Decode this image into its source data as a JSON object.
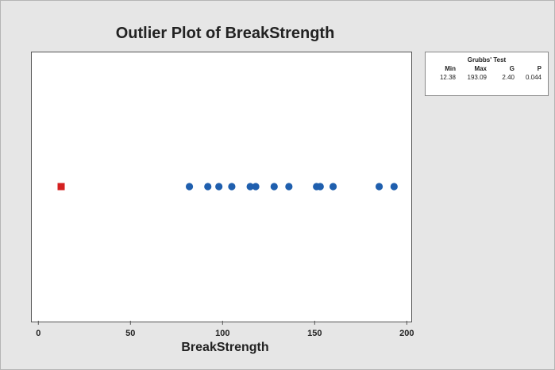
{
  "chart_data": {
    "type": "scatter",
    "title": "Outlier Plot of BreakStrength",
    "xlabel": "BreakStrength",
    "ylabel": "",
    "xlim": [
      -4,
      202
    ],
    "x_ticks": [
      0,
      50,
      100,
      150,
      200
    ],
    "grid": false,
    "points": [
      {
        "x": 12.38,
        "outlier": true
      },
      {
        "x": 82,
        "outlier": false
      },
      {
        "x": 92,
        "outlier": false
      },
      {
        "x": 98,
        "outlier": false
      },
      {
        "x": 105,
        "outlier": false
      },
      {
        "x": 115,
        "outlier": false
      },
      {
        "x": 118,
        "outlier": false
      },
      {
        "x": 128,
        "outlier": false
      },
      {
        "x": 136,
        "outlier": false
      },
      {
        "x": 151,
        "outlier": false
      },
      {
        "x": 153,
        "outlier": false
      },
      {
        "x": 160,
        "outlier": false
      },
      {
        "x": 185,
        "outlier": false
      },
      {
        "x": 193.09,
        "outlier": false
      }
    ],
    "colors": {
      "normal": "#1f5fae",
      "outlier": "#d42020"
    }
  },
  "test_table": {
    "title": "Grubbs' Test",
    "headers": [
      "Min",
      "Max",
      "G",
      "P"
    ],
    "values": [
      "12.38",
      "193.09",
      "2.40",
      "0.044"
    ]
  }
}
